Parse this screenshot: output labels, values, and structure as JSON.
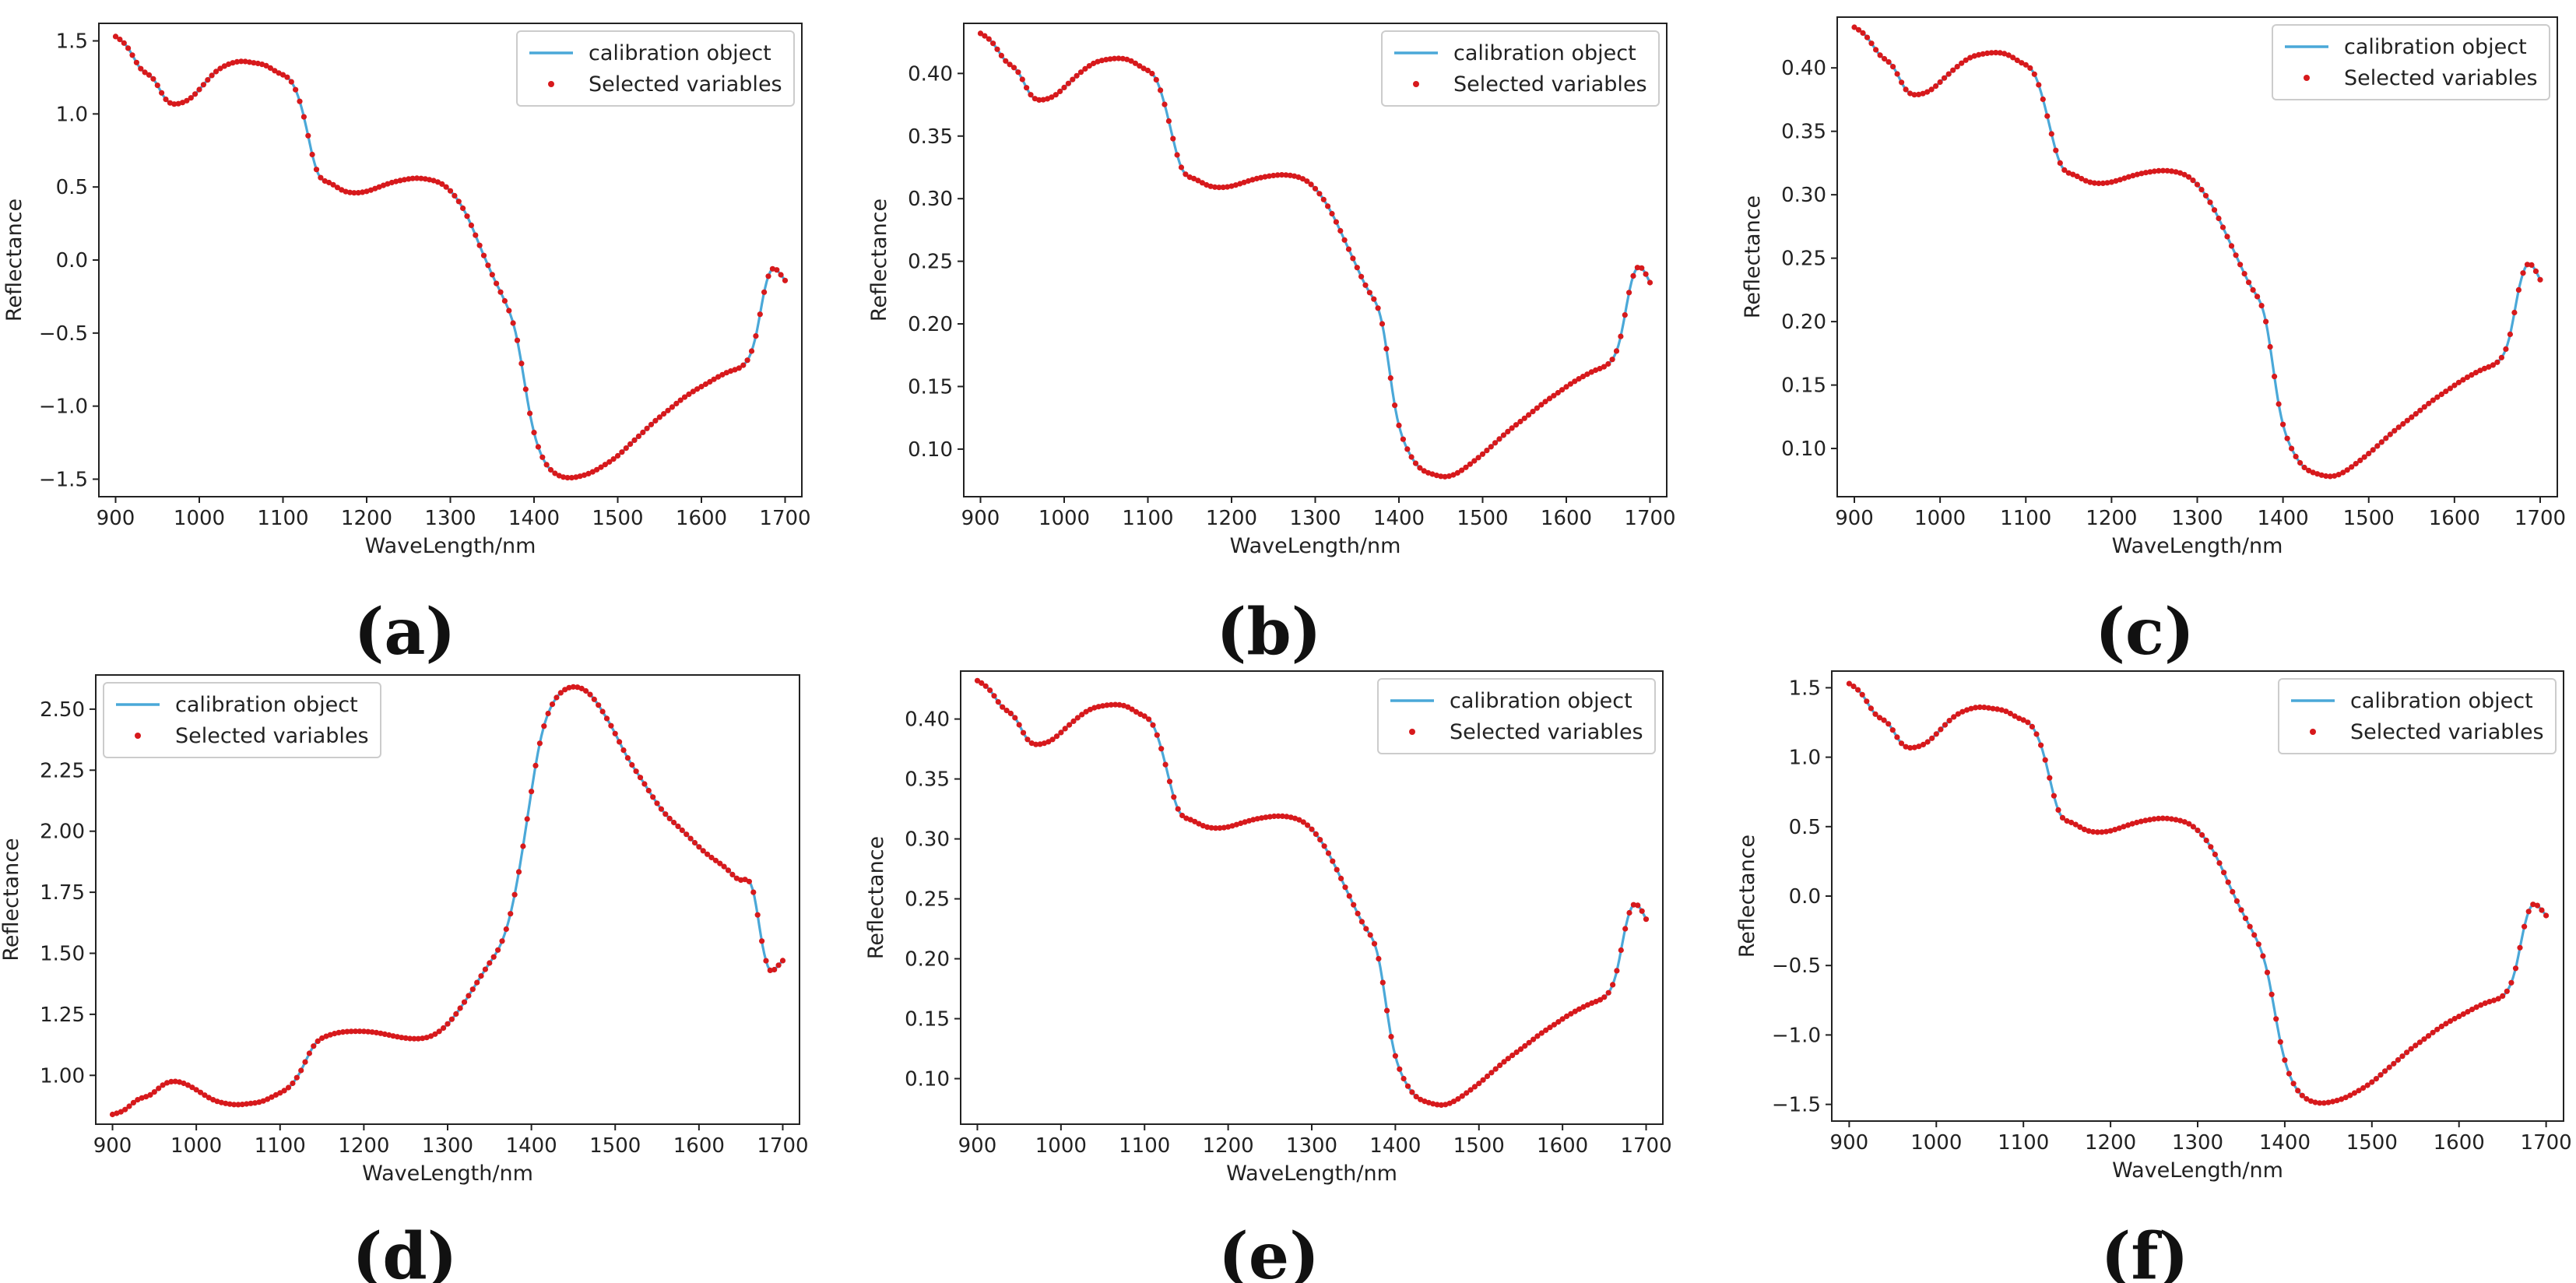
{
  "figure": {
    "colors": {
      "line": "#4aa8d8",
      "marker": "#d7191c",
      "axes": "#222222",
      "background": "#ffffff"
    }
  },
  "chart_data": [
    {
      "panel": "(a)",
      "type": "line",
      "xlabel": "WaveLength/nm",
      "ylabel": "Reflectance",
      "xlim": [
        880,
        1720
      ],
      "ylim": [
        -1.62,
        1.62
      ],
      "xticks": [
        900,
        1000,
        1100,
        1200,
        1300,
        1400,
        1500,
        1600,
        1700
      ],
      "yticks": [
        -1.5,
        -1.0,
        -0.5,
        0.0,
        0.5,
        1.0,
        1.5
      ],
      "ytick_labels": [
        "−1.5",
        "−1.0",
        "−0.5",
        "0.0",
        "0.5",
        "1.0",
        "1.5"
      ],
      "legend": {
        "position": "top-right",
        "entries": [
          "calibration object",
          "Selected variables"
        ]
      },
      "series": [
        {
          "name": "calibration object",
          "x": [
            900,
            915,
            930,
            945,
            960,
            975,
            990,
            1005,
            1020,
            1035,
            1050,
            1065,
            1080,
            1095,
            1110,
            1125,
            1140,
            1155,
            1170,
            1185,
            1200,
            1215,
            1230,
            1245,
            1260,
            1275,
            1290,
            1305,
            1320,
            1335,
            1350,
            1365,
            1380,
            1395,
            1410,
            1425,
            1440,
            1455,
            1470,
            1485,
            1500,
            1515,
            1530,
            1545,
            1560,
            1575,
            1590,
            1605,
            1620,
            1635,
            1650,
            1665,
            1675,
            1685,
            1692,
            1700
          ],
          "y": [
            1.53,
            1.45,
            1.31,
            1.24,
            1.1,
            1.07,
            1.11,
            1.2,
            1.29,
            1.34,
            1.36,
            1.35,
            1.33,
            1.28,
            1.22,
            0.98,
            0.62,
            0.53,
            0.48,
            0.46,
            0.47,
            0.5,
            0.53,
            0.55,
            0.56,
            0.55,
            0.52,
            0.44,
            0.3,
            0.1,
            -0.1,
            -0.28,
            -0.55,
            -1.05,
            -1.35,
            -1.46,
            -1.49,
            -1.48,
            -1.45,
            -1.4,
            -1.34,
            -1.26,
            -1.18,
            -1.1,
            -1.03,
            -0.96,
            -0.9,
            -0.85,
            -0.8,
            -0.76,
            -0.72,
            -0.52,
            -0.22,
            -0.06,
            -0.08,
            -0.14
          ]
        },
        {
          "name": "Selected variables",
          "marker": "dot",
          "x_step": 5
        }
      ]
    },
    {
      "panel": "(b)",
      "type": "line",
      "xlabel": "WaveLength/nm",
      "ylabel": "Reflectance",
      "xlim": [
        880,
        1720
      ],
      "ylim": [
        0.062,
        0.44
      ],
      "xticks": [
        900,
        1000,
        1100,
        1200,
        1300,
        1400,
        1500,
        1600,
        1700
      ],
      "yticks": [
        0.1,
        0.15,
        0.2,
        0.25,
        0.3,
        0.35,
        0.4
      ],
      "ytick_labels": [
        "0.10",
        "0.15",
        "0.20",
        "0.25",
        "0.30",
        "0.35",
        "0.40"
      ],
      "legend": {
        "position": "top-right",
        "entries": [
          "calibration object",
          "Selected variables"
        ]
      },
      "series": [
        {
          "name": "calibration object",
          "x": [
            900,
            915,
            930,
            945,
            960,
            975,
            990,
            1005,
            1020,
            1035,
            1050,
            1065,
            1080,
            1095,
            1110,
            1125,
            1140,
            1155,
            1170,
            1185,
            1200,
            1215,
            1230,
            1245,
            1260,
            1275,
            1290,
            1305,
            1320,
            1335,
            1350,
            1365,
            1380,
            1395,
            1410,
            1425,
            1440,
            1455,
            1470,
            1485,
            1500,
            1515,
            1530,
            1545,
            1560,
            1575,
            1590,
            1605,
            1620,
            1635,
            1650,
            1665,
            1675,
            1685,
            1692,
            1700
          ],
          "y": [
            0.432,
            0.424,
            0.41,
            0.401,
            0.383,
            0.379,
            0.383,
            0.392,
            0.401,
            0.408,
            0.411,
            0.412,
            0.41,
            0.404,
            0.395,
            0.362,
            0.325,
            0.316,
            0.311,
            0.309,
            0.31,
            0.313,
            0.316,
            0.318,
            0.319,
            0.318,
            0.314,
            0.304,
            0.288,
            0.267,
            0.245,
            0.225,
            0.2,
            0.135,
            0.1,
            0.085,
            0.08,
            0.078,
            0.081,
            0.088,
            0.096,
            0.105,
            0.114,
            0.122,
            0.13,
            0.138,
            0.145,
            0.152,
            0.158,
            0.163,
            0.168,
            0.19,
            0.225,
            0.245,
            0.243,
            0.233
          ]
        },
        {
          "name": "Selected variables",
          "marker": "dot",
          "x_step": 5
        }
      ]
    },
    {
      "panel": "(c)",
      "type": "line",
      "xlabel": "WaveLength/nm",
      "ylabel": "Reflectance",
      "xlim": [
        880,
        1720
      ],
      "ylim": [
        0.062,
        0.44
      ],
      "xticks": [
        900,
        1000,
        1100,
        1200,
        1300,
        1400,
        1500,
        1600,
        1700
      ],
      "yticks": [
        0.1,
        0.15,
        0.2,
        0.25,
        0.3,
        0.35,
        0.4
      ],
      "ytick_labels": [
        "0.10",
        "0.15",
        "0.20",
        "0.25",
        "0.30",
        "0.35",
        "0.40"
      ],
      "legend": {
        "position": "top-right",
        "entries": [
          "calibration object",
          "Selected variables"
        ]
      },
      "series": [
        {
          "name": "calibration object",
          "x": [
            900,
            915,
            930,
            945,
            960,
            975,
            990,
            1005,
            1020,
            1035,
            1050,
            1065,
            1080,
            1095,
            1110,
            1125,
            1140,
            1155,
            1170,
            1185,
            1200,
            1215,
            1230,
            1245,
            1260,
            1275,
            1290,
            1305,
            1320,
            1335,
            1350,
            1365,
            1380,
            1395,
            1410,
            1425,
            1440,
            1455,
            1470,
            1485,
            1500,
            1515,
            1530,
            1545,
            1560,
            1575,
            1590,
            1605,
            1620,
            1635,
            1650,
            1665,
            1675,
            1685,
            1692,
            1700
          ],
          "y": [
            0.432,
            0.424,
            0.41,
            0.401,
            0.383,
            0.379,
            0.383,
            0.392,
            0.401,
            0.408,
            0.411,
            0.412,
            0.41,
            0.404,
            0.395,
            0.362,
            0.325,
            0.316,
            0.311,
            0.309,
            0.31,
            0.313,
            0.316,
            0.318,
            0.319,
            0.318,
            0.314,
            0.304,
            0.288,
            0.267,
            0.245,
            0.225,
            0.2,
            0.135,
            0.1,
            0.085,
            0.08,
            0.078,
            0.081,
            0.088,
            0.096,
            0.105,
            0.114,
            0.122,
            0.13,
            0.138,
            0.145,
            0.152,
            0.158,
            0.163,
            0.168,
            0.19,
            0.225,
            0.245,
            0.243,
            0.233
          ]
        },
        {
          "name": "Selected variables",
          "marker": "dot",
          "x_step": 5
        }
      ]
    },
    {
      "panel": "(d)",
      "type": "line",
      "xlabel": "WaveLength/nm",
      "ylabel": "Reflectance",
      "xlim": [
        880,
        1720
      ],
      "ylim": [
        0.8,
        2.64
      ],
      "xticks": [
        900,
        1000,
        1100,
        1200,
        1300,
        1400,
        1500,
        1600,
        1700
      ],
      "yticks": [
        1.0,
        1.25,
        1.5,
        1.75,
        2.0,
        2.25,
        2.5
      ],
      "ytick_labels": [
        "1.00",
        "1.25",
        "1.50",
        "1.75",
        "2.00",
        "2.25",
        "2.50"
      ],
      "legend": {
        "position": "top-left",
        "entries": [
          "calibration object",
          "Selected variables"
        ]
      },
      "series": [
        {
          "name": "calibration object",
          "x": [
            900,
            915,
            930,
            945,
            960,
            975,
            990,
            1005,
            1020,
            1035,
            1050,
            1065,
            1080,
            1095,
            1110,
            1125,
            1140,
            1155,
            1170,
            1185,
            1200,
            1215,
            1230,
            1245,
            1260,
            1275,
            1290,
            1305,
            1320,
            1335,
            1350,
            1365,
            1380,
            1395,
            1410,
            1425,
            1440,
            1455,
            1470,
            1485,
            1500,
            1515,
            1530,
            1545,
            1560,
            1575,
            1590,
            1605,
            1620,
            1635,
            1650,
            1665,
            1675,
            1685,
            1692,
            1700
          ],
          "y": [
            0.84,
            0.86,
            0.9,
            0.92,
            0.96,
            0.975,
            0.96,
            0.93,
            0.9,
            0.885,
            0.88,
            0.885,
            0.895,
            0.92,
            0.95,
            1.02,
            1.12,
            1.16,
            1.175,
            1.18,
            1.18,
            1.175,
            1.165,
            1.155,
            1.15,
            1.155,
            1.18,
            1.23,
            1.3,
            1.38,
            1.46,
            1.55,
            1.74,
            2.05,
            2.36,
            2.52,
            2.58,
            2.59,
            2.56,
            2.49,
            2.4,
            2.3,
            2.22,
            2.14,
            2.07,
            2.02,
            1.97,
            1.92,
            1.88,
            1.84,
            1.8,
            1.75,
            1.55,
            1.43,
            1.44,
            1.47
          ]
        },
        {
          "name": "Selected variables",
          "marker": "dot",
          "x_step": 5
        }
      ]
    },
    {
      "panel": "(e)",
      "type": "line",
      "xlabel": "WaveLength/nm",
      "ylabel": "Reflectance",
      "xlim": [
        880,
        1720
      ],
      "ylim": [
        0.062,
        0.44
      ],
      "xticks": [
        900,
        1000,
        1100,
        1200,
        1300,
        1400,
        1500,
        1600,
        1700
      ],
      "yticks": [
        0.1,
        0.15,
        0.2,
        0.25,
        0.3,
        0.35,
        0.4
      ],
      "ytick_labels": [
        "0.10",
        "0.15",
        "0.20",
        "0.25",
        "0.30",
        "0.35",
        "0.40"
      ],
      "legend": {
        "position": "top-right",
        "entries": [
          "calibration object",
          "Selected variables"
        ]
      },
      "series": [
        {
          "name": "calibration object",
          "x": [
            900,
            915,
            930,
            945,
            960,
            975,
            990,
            1005,
            1020,
            1035,
            1050,
            1065,
            1080,
            1095,
            1110,
            1125,
            1140,
            1155,
            1170,
            1185,
            1200,
            1215,
            1230,
            1245,
            1260,
            1275,
            1290,
            1305,
            1320,
            1335,
            1350,
            1365,
            1380,
            1395,
            1410,
            1425,
            1440,
            1455,
            1470,
            1485,
            1500,
            1515,
            1530,
            1545,
            1560,
            1575,
            1590,
            1605,
            1620,
            1635,
            1650,
            1665,
            1675,
            1685,
            1692,
            1700
          ],
          "y": [
            0.432,
            0.424,
            0.41,
            0.401,
            0.383,
            0.379,
            0.383,
            0.392,
            0.401,
            0.408,
            0.411,
            0.412,
            0.41,
            0.404,
            0.395,
            0.362,
            0.325,
            0.316,
            0.311,
            0.309,
            0.31,
            0.313,
            0.316,
            0.318,
            0.319,
            0.318,
            0.314,
            0.304,
            0.288,
            0.267,
            0.245,
            0.225,
            0.2,
            0.135,
            0.1,
            0.085,
            0.08,
            0.078,
            0.081,
            0.088,
            0.096,
            0.105,
            0.114,
            0.122,
            0.13,
            0.138,
            0.145,
            0.152,
            0.158,
            0.163,
            0.168,
            0.19,
            0.225,
            0.245,
            0.243,
            0.233
          ]
        },
        {
          "name": "Selected variables",
          "marker": "dot",
          "x_step": 5
        }
      ]
    },
    {
      "panel": "(f)",
      "type": "line",
      "xlabel": "WaveLength/nm",
      "ylabel": "Reflectance",
      "xlim": [
        880,
        1720
      ],
      "ylim": [
        -1.62,
        1.62
      ],
      "xticks": [
        900,
        1000,
        1100,
        1200,
        1300,
        1400,
        1500,
        1600,
        1700
      ],
      "yticks": [
        -1.5,
        -1.0,
        -0.5,
        0.0,
        0.5,
        1.0,
        1.5
      ],
      "ytick_labels": [
        "−1.5",
        "−1.0",
        "−0.5",
        "0.0",
        "0.5",
        "1.0",
        "1.5"
      ],
      "legend": {
        "position": "top-right",
        "entries": [
          "calibration object",
          "Selected variables"
        ]
      },
      "series": [
        {
          "name": "calibration object",
          "x": [
            900,
            915,
            930,
            945,
            960,
            975,
            990,
            1005,
            1020,
            1035,
            1050,
            1065,
            1080,
            1095,
            1110,
            1125,
            1140,
            1155,
            1170,
            1185,
            1200,
            1215,
            1230,
            1245,
            1260,
            1275,
            1290,
            1305,
            1320,
            1335,
            1350,
            1365,
            1380,
            1395,
            1410,
            1425,
            1440,
            1455,
            1470,
            1485,
            1500,
            1515,
            1530,
            1545,
            1560,
            1575,
            1590,
            1605,
            1620,
            1635,
            1650,
            1665,
            1675,
            1685,
            1692,
            1700
          ],
          "y": [
            1.53,
            1.45,
            1.31,
            1.24,
            1.1,
            1.07,
            1.11,
            1.2,
            1.29,
            1.34,
            1.36,
            1.35,
            1.33,
            1.28,
            1.22,
            0.98,
            0.62,
            0.53,
            0.48,
            0.46,
            0.47,
            0.5,
            0.53,
            0.55,
            0.56,
            0.55,
            0.52,
            0.44,
            0.3,
            0.1,
            -0.1,
            -0.28,
            -0.55,
            -1.05,
            -1.35,
            -1.46,
            -1.49,
            -1.48,
            -1.45,
            -1.4,
            -1.34,
            -1.26,
            -1.18,
            -1.1,
            -1.03,
            -0.96,
            -0.9,
            -0.85,
            -0.8,
            -0.76,
            -0.72,
            -0.52,
            -0.22,
            -0.06,
            -0.08,
            -0.14
          ]
        },
        {
          "name": "Selected variables",
          "marker": "dot",
          "x_step": 5
        }
      ]
    }
  ]
}
